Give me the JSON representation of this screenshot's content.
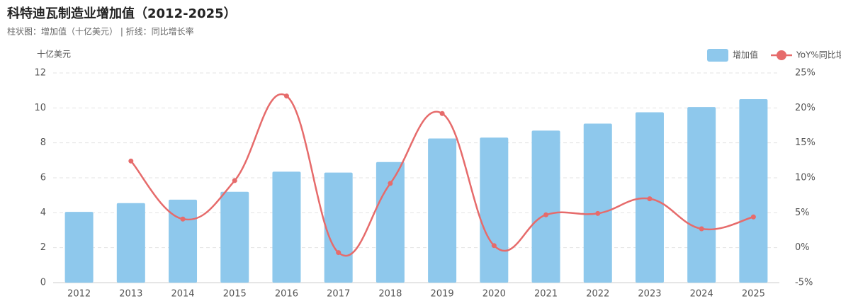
{
  "chart_data": {
    "type": "bar-line",
    "title": "科特迪瓦制造业增加值（2012-2025）",
    "subtitle": "柱状图：增加值（十亿美元） | 折线：同比增长率",
    "y_label": "十亿美元",
    "categories": [
      "2012",
      "2013",
      "2014",
      "2015",
      "2016",
      "2017",
      "2018",
      "2019",
      "2020",
      "2021",
      "2022",
      "2023",
      "2024",
      "2025"
    ],
    "series": [
      {
        "name": "增加值",
        "type": "bar",
        "color": "#8ec8ec",
        "values": [
          4.05,
          4.55,
          4.75,
          5.2,
          6.35,
          6.3,
          6.9,
          8.25,
          8.3,
          8.7,
          9.1,
          9.75,
          10.05,
          10.5
        ]
      },
      {
        "name": "YoY%同比增速",
        "type": "line",
        "axis": "y2",
        "color": "#e66b6b",
        "values": [
          null,
          12.4,
          4.1,
          9.6,
          21.7,
          -0.7,
          9.2,
          19.2,
          0.3,
          4.7,
          4.9,
          7.0,
          2.7,
          4.4
        ]
      }
    ],
    "ylim": [
      0,
      12
    ],
    "yticks": [
      0,
      2,
      4,
      6,
      8,
      10,
      12
    ],
    "y2lim": [
      -5,
      25
    ],
    "y2ticks": [
      {
        "value": -5,
        "label": "-5%"
      },
      {
        "value": 0,
        "label": "0%"
      },
      {
        "value": 5,
        "label": "5%"
      },
      {
        "value": 10,
        "label": "10%"
      },
      {
        "value": 15,
        "label": "15%"
      },
      {
        "value": 20,
        "label": "20%"
      },
      {
        "value": 25,
        "label": "25%"
      }
    ],
    "grid": true,
    "legend": "top-right"
  }
}
